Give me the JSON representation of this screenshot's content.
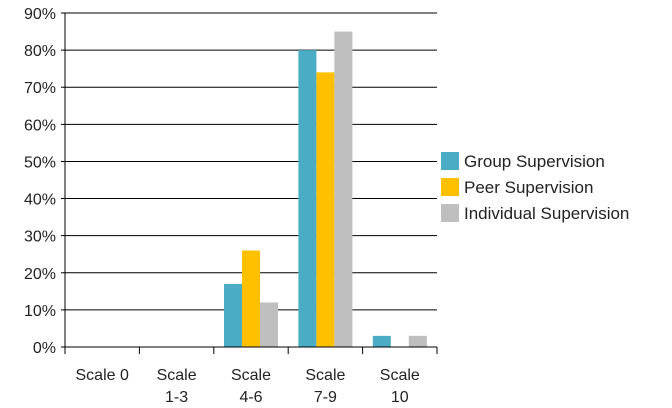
{
  "chart_data": {
    "type": "bar",
    "categories": [
      [
        "Scale 0"
      ],
      [
        "Scale",
        "1-3"
      ],
      [
        "Scale",
        "4-6"
      ],
      [
        "Scale",
        "7-9"
      ],
      [
        "Scale",
        "10"
      ]
    ],
    "series": [
      {
        "name": "Group Supervision",
        "color": "#4BACC6",
        "values": [
          0,
          0,
          17,
          80,
          3
        ]
      },
      {
        "name": "Peer Supervision",
        "color": "#FFC000",
        "values": [
          0,
          0,
          26,
          74,
          0
        ]
      },
      {
        "name": "Individual Supervision",
        "color": "#BFBFBF",
        "values": [
          0,
          0,
          12,
          85,
          3
        ]
      }
    ],
    "y_ticks": [
      "0%",
      "10%",
      "20%",
      "30%",
      "40%",
      "50%",
      "60%",
      "70%",
      "80%",
      "90%"
    ],
    "ylim": [
      0,
      90
    ],
    "grid": true,
    "legend_position": "right"
  }
}
